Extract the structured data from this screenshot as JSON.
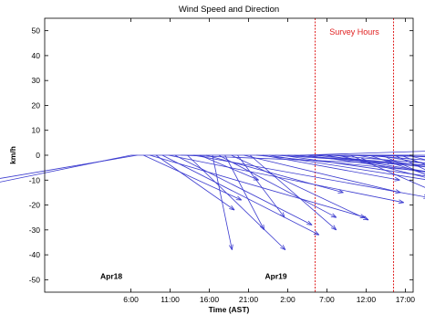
{
  "chart_data": {
    "type": "quiver",
    "title": "Wind Speed and Direction",
    "xlabel": "Time (AST)",
    "ylabel": "km/h",
    "x_tick_labels": [
      "6:00",
      "11:00",
      "16:00",
      "21:00",
      "2:00",
      "7:00",
      "12:00",
      "17:00"
    ],
    "y_ticks": [
      50,
      40,
      30,
      20,
      10,
      0,
      -10,
      -20,
      -30,
      -40,
      -50
    ],
    "ylim": [
      -55,
      55
    ],
    "xlim_hours_apr18": [
      -5,
      42
    ],
    "grid": false,
    "date_labels": [
      {
        "text": "Apr18",
        "x_hour": 3.5,
        "y": -48.5
      },
      {
        "text": "Apr19",
        "x_hour": 24.5,
        "y": -48.5
      }
    ],
    "survey_hours": {
      "label": "Survey Hours",
      "start_hour": 29.5,
      "end_hour": 39.5,
      "color": "#e02020"
    },
    "arrow_color": "#3a3acf",
    "vectors_note": "arrows originate on the y=0 baseline at each observation time; u,v in km/h",
    "vectors": [
      {
        "t": 6.0,
        "u": -90,
        "v": -29
      },
      {
        "t": 6.8,
        "u": -45,
        "v": -12
      },
      {
        "t": 7.6,
        "u": 25,
        "v": -18
      },
      {
        "t": 8.4,
        "u": 55,
        "v": -25
      },
      {
        "t": 9.2,
        "u": 20,
        "v": -22
      },
      {
        "t": 10.0,
        "u": 40,
        "v": -32
      },
      {
        "t": 10.8,
        "u": 60,
        "v": -19
      },
      {
        "t": 11.6,
        "u": 35,
        "v": -28
      },
      {
        "t": 12.4,
        "u": 80,
        "v": -5
      },
      {
        "t": 13.2,
        "u": 25,
        "v": -38
      },
      {
        "t": 14.0,
        "u": 60,
        "v": -17
      },
      {
        "t": 14.8,
        "u": 15,
        "v": -10
      },
      {
        "t": 15.6,
        "u": 35,
        "v": -15
      },
      {
        "t": 16.4,
        "u": 5,
        "v": -38
      },
      {
        "t": 17.2,
        "u": 30,
        "v": -25
      },
      {
        "t": 18.0,
        "u": 10,
        "v": -30
      },
      {
        "t": 18.8,
        "u": 35,
        "v": -26
      },
      {
        "t": 19.6,
        "u": 12,
        "v": -25
      },
      {
        "t": 20.4,
        "u": 40,
        "v": -15
      },
      {
        "t": 21.2,
        "u": 22,
        "v": -30
      },
      {
        "t": 22.0,
        "u": 120,
        "v": -18
      },
      {
        "t": 22.8,
        "u": 35,
        "v": -10
      },
      {
        "t": 23.6,
        "u": 90,
        "v": -22
      },
      {
        "t": 24.4,
        "u": 30,
        "v": -3
      },
      {
        "t": 25.2,
        "u": 110,
        "v": -25
      },
      {
        "t": 26.0,
        "u": 20,
        "v": -2
      },
      {
        "t": 26.8,
        "u": 100,
        "v": -14
      },
      {
        "t": 27.6,
        "u": 60,
        "v": 3
      },
      {
        "t": 28.4,
        "u": 90,
        "v": -20
      },
      {
        "t": 29.2,
        "u": 70,
        "v": -10
      },
      {
        "t": 30.0,
        "u": 60,
        "v": -1
      },
      {
        "t": 30.8,
        "u": 55,
        "v": -14
      },
      {
        "t": 31.6,
        "u": 45,
        "v": -6
      },
      {
        "t": 32.4,
        "u": 50,
        "v": -20
      },
      {
        "t": 33.2,
        "u": 35,
        "v": 0
      },
      {
        "t": 34.0,
        "u": 25,
        "v": -17
      },
      {
        "t": 34.8,
        "u": 30,
        "v": -8
      },
      {
        "t": 35.6,
        "u": 25,
        "v": -3
      },
      {
        "t": 36.4,
        "u": 30,
        "v": -16
      },
      {
        "t": 37.2,
        "u": 20,
        "v": -5
      },
      {
        "t": 38.0,
        "u": 20,
        "v": -14
      },
      {
        "t": 38.8,
        "u": 15,
        "v": -1
      },
      {
        "t": 39.6,
        "u": 15,
        "v": -11
      },
      {
        "t": 40.4,
        "u": 10,
        "v": -6
      },
      {
        "t": 41.2,
        "u": 8,
        "v": -3
      }
    ]
  }
}
